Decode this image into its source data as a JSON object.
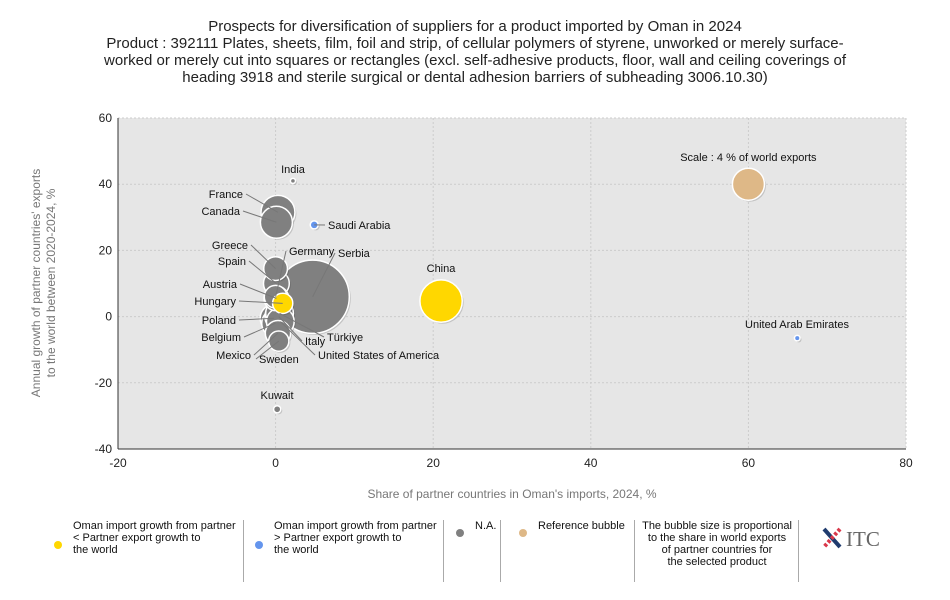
{
  "title": {
    "line1": "Prospects for diversification of suppliers for a product imported by Oman in 2024",
    "line2": "Product : 392111 Plates, sheets, film, foil and strip, of cellular polymers of styrene, unworked or merely surface-",
    "line3": "worked or merely cut into squares or rectangles (excl. self-adhesive products, floor, wall and ceiling coverings of",
    "line4": "heading 3918 and sterile surgical or dental adhesion barriers of subheading 3006.10.30)"
  },
  "chart_data": {
    "type": "scatter",
    "xlabel": "Share of partner countries in Oman's imports, 2024, %",
    "ylabel_line1": "Annual growth of partner countries' exports",
    "ylabel_line2": "to the world between 2020-2024, %",
    "xlim": [
      -20,
      80
    ],
    "ylim": [
      -40,
      60
    ],
    "xticks": [
      "-20",
      "0",
      "20",
      "40",
      "60",
      "80"
    ],
    "yticks": [
      "-40",
      "-20",
      "0",
      "20",
      "40",
      "60"
    ],
    "grid": true,
    "colors": {
      "lower": "#FFD700",
      "higher": "#6495ED",
      "na": "#808080",
      "reference": "#DEB887"
    },
    "points": [
      {
        "name": "India",
        "x": 2.2,
        "y": 41,
        "size": 0.1,
        "cat": "na"
      },
      {
        "name": "France",
        "x": 0.3,
        "y": 31.5,
        "size": 4.5,
        "cat": "na"
      },
      {
        "name": "Canada",
        "x": 0.1,
        "y": 28.5,
        "size": 4,
        "cat": "na"
      },
      {
        "name": "Saudi Arabia",
        "x": 4.9,
        "y": 27.7,
        "size": 0.25,
        "cat": "higher"
      },
      {
        "name": "Greece",
        "x": 0,
        "y": 14.5,
        "size": 2.2,
        "cat": "na"
      },
      {
        "name": "Spain",
        "x": 0.1,
        "y": 10,
        "size": 2.6,
        "cat": "na"
      },
      {
        "name": "Austria",
        "x": 0.1,
        "y": 5.5,
        "size": 2.4,
        "cat": "na"
      },
      {
        "name": "Hungary",
        "x": 0.9,
        "y": 4,
        "size": 1.6,
        "cat": "lower"
      },
      {
        "name": "Germany",
        "x": 0,
        "y": 6,
        "size": 2,
        "cat": "na"
      },
      {
        "name": "Serbia",
        "x": 4.7,
        "y": 6,
        "size": 21,
        "cat": "na"
      },
      {
        "name": "China",
        "x": 21,
        "y": 4.7,
        "size": 7,
        "cat": "lower"
      },
      {
        "name": "Poland",
        "x": -0.2,
        "y": -0.5,
        "size": 3,
        "cat": "na"
      },
      {
        "name": "Belgium",
        "x": 0,
        "y": -2,
        "size": 3,
        "cat": "na"
      },
      {
        "name": "Italy",
        "x": 0.4,
        "y": 0,
        "size": 3,
        "cat": "na"
      },
      {
        "name": "Türkiye",
        "x": 0.5,
        "y": 1,
        "size": 3,
        "cat": "na"
      },
      {
        "name": "United States of America",
        "x": 0.6,
        "y": -1.5,
        "size": 3,
        "cat": "na"
      },
      {
        "name": "Mexico",
        "x": 0.3,
        "y": -5,
        "size": 2.5,
        "cat": "na"
      },
      {
        "name": "Sweden",
        "x": 0.4,
        "y": -7.4,
        "size": 1.6,
        "cat": "na"
      },
      {
        "name": "Kuwait",
        "x": 0.2,
        "y": -28,
        "size": 0.2,
        "cat": "na"
      },
      {
        "name": "United Arab Emirates",
        "x": 66.2,
        "y": -6.5,
        "size": 0.12,
        "cat": "higher"
      }
    ],
    "reference": {
      "label": "Scale : 4 % of world exports",
      "x": 60,
      "y": 40,
      "size": 4
    }
  },
  "legend": {
    "lower": [
      "Oman import growth from partner",
      "< Partner export growth to",
      "the world"
    ],
    "higher": [
      "Oman import growth from partner",
      "> Partner export growth to",
      "the world"
    ],
    "na": "N.A.",
    "reference": "Reference bubble",
    "note": [
      "The bubble size is proportional",
      "to the share in world exports",
      "of partner countries for",
      "the selected product"
    ],
    "logo": "ITC"
  }
}
